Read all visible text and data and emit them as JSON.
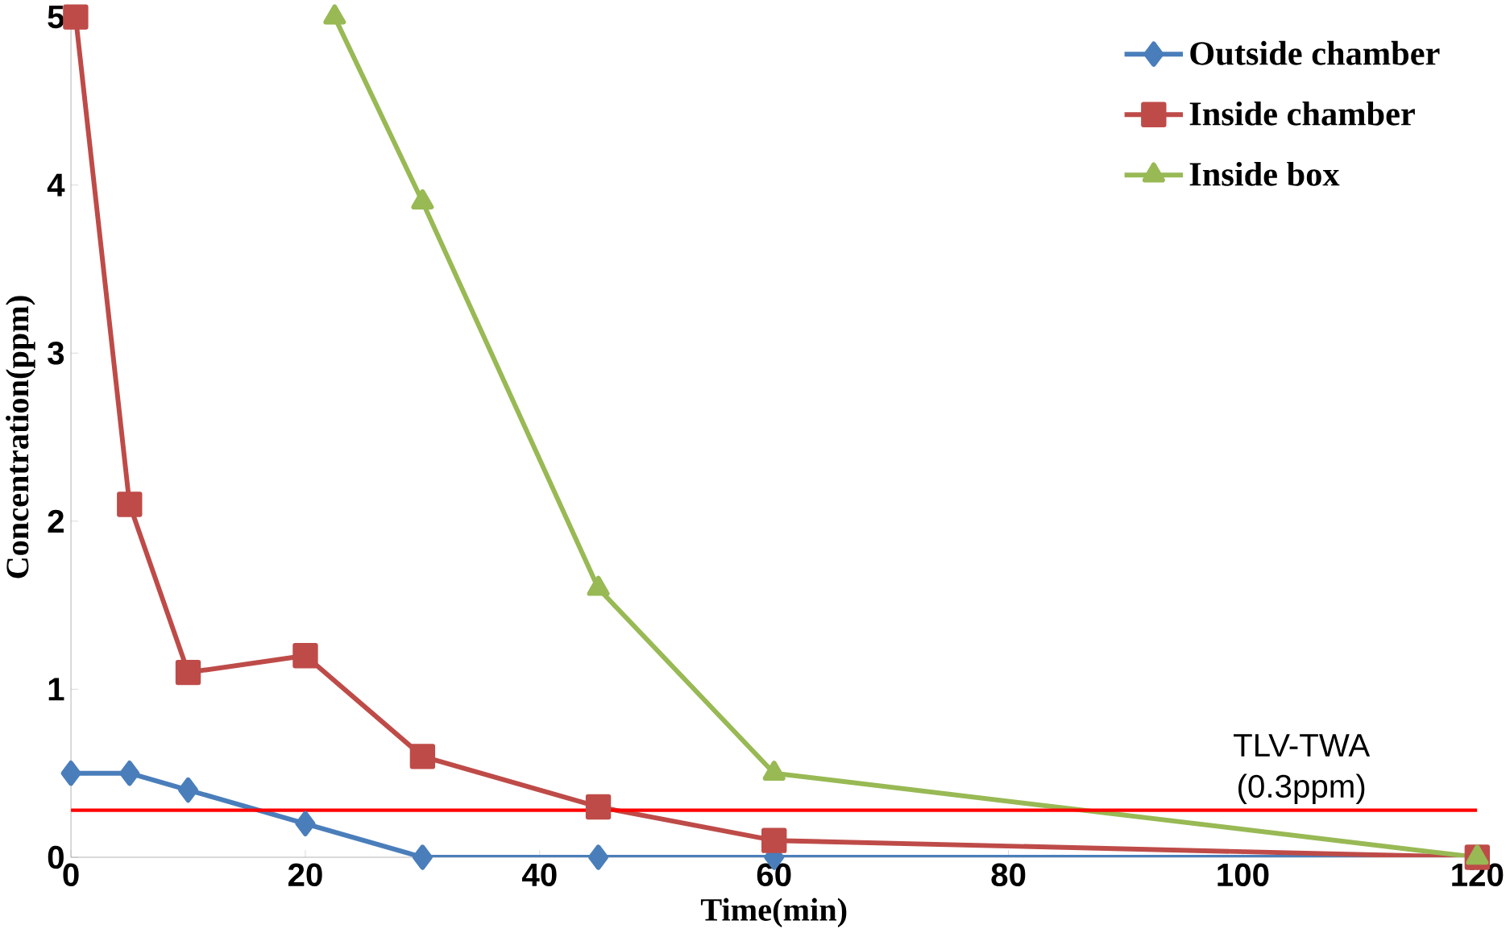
{
  "chart_data": {
    "type": "line",
    "xlabel": "Time(min)",
    "ylabel": "Concentration(ppm)",
    "x": [
      0,
      5,
      10,
      20,
      30,
      45,
      60,
      120
    ],
    "series": [
      {
        "name": "Outside chamber",
        "color": "#4a7ebb",
        "marker": "diamond",
        "values": [
          0.5,
          0.5,
          0.4,
          0.2,
          0,
          0,
          0,
          0
        ]
      },
      {
        "name": "Inside chamber",
        "color": "#be4b48",
        "marker": "square",
        "x": [
          0.4,
          5,
          10,
          20,
          30,
          45,
          60,
          120
        ],
        "values": [
          5,
          2.1,
          1.1,
          1.2,
          0.6,
          0.3,
          0.1,
          0
        ]
      },
      {
        "name": "Inside box",
        "color": "#98b954",
        "marker": "triangle",
        "x": [
          22.5,
          30,
          45,
          60,
          120
        ],
        "values": [
          5,
          3.9,
          1.6,
          0.5,
          0
        ]
      }
    ],
    "xlim": [
      0,
      120
    ],
    "ylim": [
      0,
      5
    ],
    "xticks": [
      0,
      20,
      40,
      60,
      80,
      100,
      120
    ],
    "yticks": [
      0,
      1,
      2,
      3,
      4,
      5
    ],
    "ref_lines": [
      {
        "axis": "y",
        "value": 0.28,
        "label": "TLV-TWA (0.3ppm)",
        "color": "#ff0000"
      }
    ],
    "legend": "top right",
    "grid": false
  }
}
